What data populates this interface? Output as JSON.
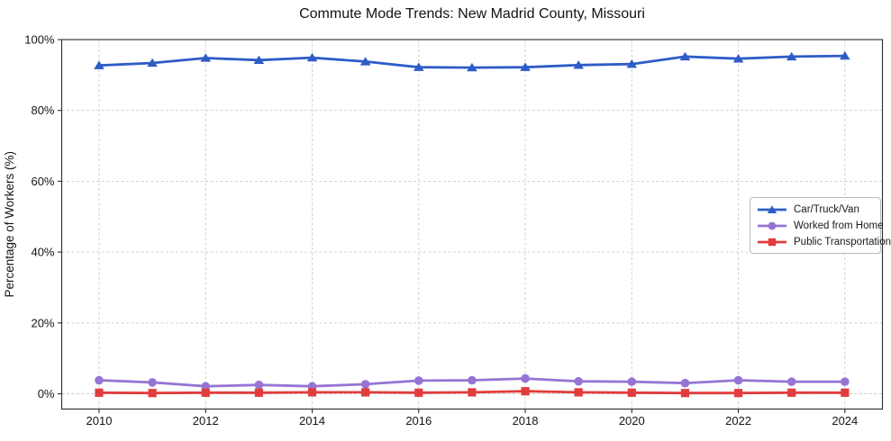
{
  "title": "Commute Mode Trends: New Madrid County, Missouri",
  "chart_data": {
    "type": "line",
    "title": "Commute Mode Trends: New Madrid County, Missouri",
    "xlabel": "",
    "ylabel": "Percentage of Workers (%)",
    "x": [
      2010,
      2011,
      2012,
      2013,
      2014,
      2015,
      2016,
      2017,
      2018,
      2019,
      2020,
      2021,
      2022,
      2023,
      2024
    ],
    "x_tick_values": [
      2010,
      2012,
      2014,
      2016,
      2018,
      2020,
      2022,
      2024
    ],
    "x_tick_labels": [
      "2010",
      "2012",
      "2014",
      "2016",
      "2018",
      "2020",
      "2022",
      "2024"
    ],
    "y_tick_values": [
      0,
      20,
      40,
      60,
      80,
      100
    ],
    "y_tick_labels": [
      "0%",
      "20%",
      "40%",
      "60%",
      "80%",
      "100%"
    ],
    "xlim": [
      2009.3,
      2024.7
    ],
    "ylim": [
      -4.4,
      100
    ],
    "grid": true,
    "grid_style": "dashed",
    "legend_position": "center-right",
    "series": [
      {
        "name": "Car/Truck/Van",
        "color": "#2e5cc7",
        "marker": "triangle",
        "values": [
          92.7,
          93.4,
          94.8,
          94.2,
          94.9,
          93.8,
          92.2,
          92.1,
          92.2,
          92.8,
          93.1,
          95.2,
          94.6,
          95.2,
          95.4
        ]
      },
      {
        "name": "Worked from Home",
        "color": "#9674d4",
        "marker": "circle",
        "values": [
          3.8,
          3.2,
          2.1,
          2.5,
          2.1,
          2.7,
          3.7,
          3.8,
          4.3,
          3.5,
          3.4,
          3.0,
          3.8,
          3.4,
          3.4
        ]
      },
      {
        "name": "Public Transportation",
        "color": "#e23c3c",
        "marker": "square",
        "values": [
          0.3,
          0.2,
          0.3,
          0.3,
          0.4,
          0.4,
          0.3,
          0.4,
          0.7,
          0.4,
          0.3,
          0.2,
          0.2,
          0.3,
          0.3
        ]
      }
    ]
  }
}
